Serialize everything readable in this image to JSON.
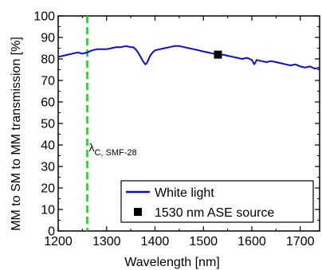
{
  "chart_data": {
    "type": "line",
    "xlabel": "Wavelength [nm]",
    "ylabel": "MM to SM to MM transmission [%]",
    "xlim": [
      1200,
      1740
    ],
    "ylim": [
      0,
      100
    ],
    "x_ticks": [
      1200,
      1300,
      1400,
      1500,
      1600,
      1700
    ],
    "y_ticks": [
      0,
      10,
      20,
      30,
      40,
      50,
      60,
      70,
      80,
      90,
      100
    ],
    "grid": false,
    "legend_position": "bottom-right",
    "series": [
      {
        "name": "White light",
        "kind": "line",
        "color": "#0a0adc",
        "x": [
          1200,
          1210,
          1220,
          1230,
          1240,
          1250,
          1260,
          1270,
          1280,
          1290,
          1300,
          1310,
          1320,
          1330,
          1340,
          1350,
          1355,
          1360,
          1365,
          1370,
          1375,
          1380,
          1383,
          1386,
          1390,
          1395,
          1400,
          1410,
          1420,
          1430,
          1440,
          1450,
          1460,
          1470,
          1480,
          1490,
          1500,
          1510,
          1520,
          1530,
          1540,
          1550,
          1560,
          1570,
          1580,
          1590,
          1600,
          1605,
          1610,
          1620,
          1630,
          1640,
          1650,
          1660,
          1670,
          1680,
          1690,
          1700,
          1710,
          1720,
          1730,
          1740
        ],
        "y": [
          81,
          81.5,
          82,
          82.5,
          83,
          82.5,
          83,
          84,
          84.5,
          84.5,
          84.5,
          85,
          85.5,
          85.5,
          86,
          85.5,
          85.5,
          84.5,
          83,
          81,
          79,
          77.5,
          78,
          79.5,
          81.5,
          83,
          84,
          84.5,
          85,
          85.5,
          86,
          86,
          85.5,
          85,
          84.5,
          84,
          83.5,
          83,
          82.5,
          82,
          82,
          81.5,
          81,
          80.5,
          80,
          80.5,
          79.5,
          77.5,
          79.5,
          79,
          78.5,
          79,
          78.5,
          78,
          77.5,
          77,
          77.5,
          76.5,
          76,
          76.5,
          75.5,
          76
        ]
      },
      {
        "name": "1530 nm ASE source",
        "kind": "marker",
        "color": "#000000",
        "x": [
          1530
        ],
        "y": [
          82
        ]
      }
    ],
    "annotations": [
      {
        "type": "vline",
        "x": 1260,
        "color": "#22cc22",
        "style": "dashed",
        "label_main": "λ",
        "label_sub": "C, SMF-28",
        "label_y": 37
      }
    ]
  }
}
